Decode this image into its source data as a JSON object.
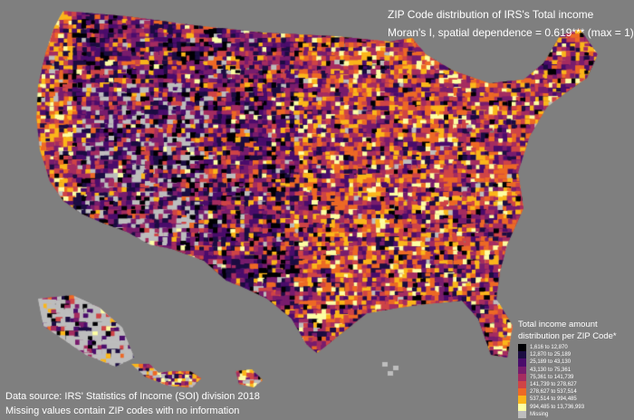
{
  "title": {
    "line1": "ZIP Code distribution of IRS's Total income",
    "line2": "Moran's I, spatial dependence = 0.619*** (max = 1)"
  },
  "legend": {
    "title_line1": "Total income amount",
    "title_line2": "distribution per ZIP Code*",
    "items": [
      {
        "label": "1,616 to 12,870",
        "color": "#000004"
      },
      {
        "label": "12,870 to 25,189",
        "color": "#1b0c41"
      },
      {
        "label": "25,189 to 43,130",
        "color": "#4a0c6b"
      },
      {
        "label": "43,130 to 75,361",
        "color": "#781c6d"
      },
      {
        "label": "75,361 to 141,739",
        "color": "#a52c60"
      },
      {
        "label": "141,739 to 278,627",
        "color": "#cf4446"
      },
      {
        "label": "278,627 to 537,514",
        "color": "#ed6925"
      },
      {
        "label": "537,514 to 994,485",
        "color": "#fbb61a"
      },
      {
        "label": "994,485 to 13,736,993",
        "color": "#fcffa4"
      },
      {
        "label": "Missing",
        "color": "#bdbdbd"
      }
    ]
  },
  "footer": {
    "line1": "Data source: IRS' Statistics of Income (SOI) division 2018",
    "line2": "Missing values contain ZIP codes with no information"
  },
  "colors": {
    "background": "#7f7f7f",
    "text": "#ffffff"
  }
}
